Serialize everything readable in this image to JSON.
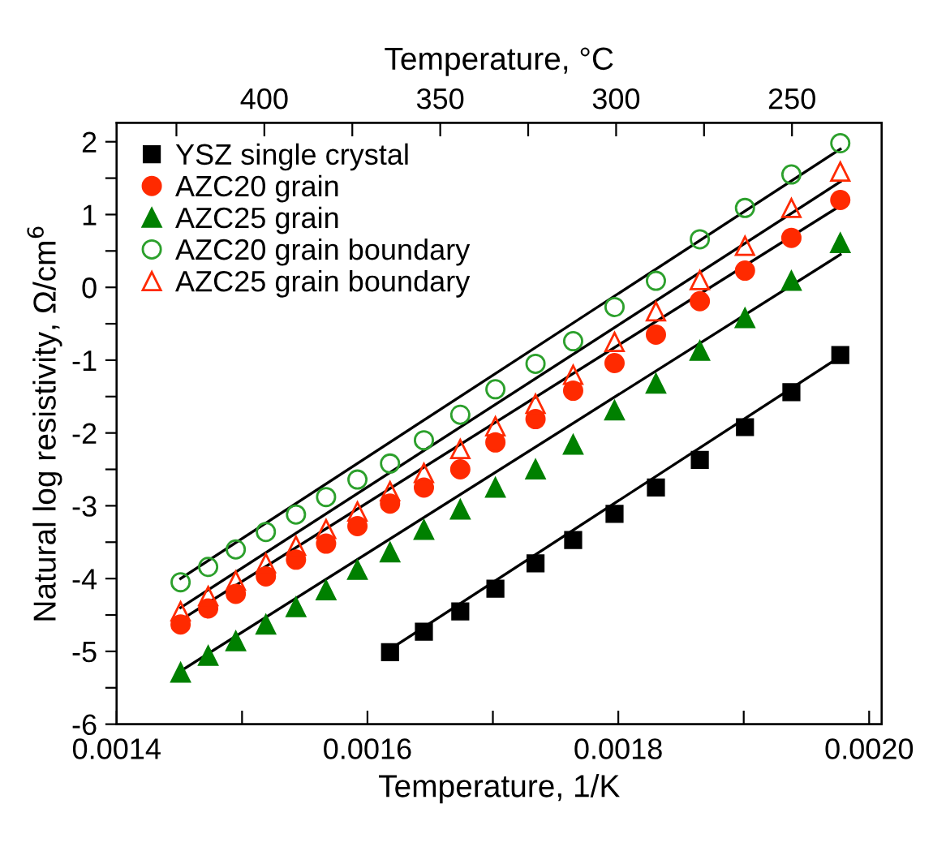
{
  "chart_data": {
    "type": "scatter",
    "xlabel": "Temperature, 1/K",
    "ylabel": "Natural log resistivity, Ω/cm$^{6}$",
    "x2label": "Temperature, °C",
    "xlim": [
      0.0014,
      0.00201
    ],
    "ylim": [
      -6,
      2.26
    ],
    "x2lim": [
      442,
      224.5
    ],
    "xticks": [
      {
        "value": 0.0014,
        "label": "0.0014"
      },
      {
        "value": 0.0015,
        "label": null
      },
      {
        "value": 0.0016,
        "label": "0.0016"
      },
      {
        "value": 0.0017,
        "label": null
      },
      {
        "value": 0.0018,
        "label": "0.0018"
      },
      {
        "value": 0.0019,
        "label": null
      },
      {
        "value": 0.002,
        "label": "0.0020"
      }
    ],
    "yticks": [
      -6,
      {
        "value": -5.5,
        "label": null
      },
      -5,
      {
        "value": -4.5,
        "label": null
      },
      -4,
      {
        "value": -3.5,
        "label": null
      },
      -3,
      {
        "value": -2.5,
        "label": null
      },
      -2,
      {
        "value": -1.5,
        "label": null
      },
      -1,
      {
        "value": -0.5,
        "label": null
      },
      0,
      {
        "value": 0.5,
        "label": null
      },
      1,
      {
        "value": 1.5,
        "label": null
      },
      2
    ],
    "x2ticks": [
      {
        "value": 425,
        "label": null
      },
      400,
      {
        "value": 375,
        "label": null
      },
      350,
      {
        "value": 325,
        "label": null
      },
      300,
      {
        "value": 275,
        "label": null
      },
      250
    ],
    "x": [
      0.001451,
      0.001473,
      0.001495,
      0.001519,
      0.001543,
      0.001567,
      0.001592,
      0.001618,
      0.001645,
      0.001674,
      0.001702,
      0.001734,
      0.001764,
      0.001797,
      0.00183,
      0.001865,
      0.001901,
      0.001938,
      0.001977
    ],
    "legend": "top left",
    "grid": false,
    "series": [
      {
        "name": "YSZ single crystal",
        "color": "#000000",
        "marker": "square",
        "x": [
          0.001618,
          0.001645,
          0.001674,
          0.001702,
          0.001734,
          0.001764,
          0.001797,
          0.00183,
          0.001865,
          0.001901,
          0.001938,
          0.001977
        ],
        "values": [
          -5.01,
          -4.73,
          -4.45,
          -4.14,
          -3.79,
          -3.47,
          -3.11,
          -2.75,
          -2.37,
          -1.92,
          -1.44,
          -0.93
        ]
      },
      {
        "name": "AZC20 grain",
        "color": "#ff2a00",
        "marker": "circle",
        "values": [
          -4.63,
          -4.41,
          -4.21,
          -3.97,
          -3.74,
          -3.52,
          -3.28,
          -2.97,
          -2.75,
          -2.5,
          -2.13,
          -1.81,
          -1.42,
          -1.04,
          -0.65,
          -0.19,
          0.23,
          0.68,
          1.2
        ]
      },
      {
        "name": "AZC25 grain",
        "color": "#008000",
        "marker": "triangle",
        "values": [
          -5.29,
          -5.06,
          -4.86,
          -4.63,
          -4.39,
          -4.16,
          -3.88,
          -3.64,
          -3.33,
          -3.05,
          -2.75,
          -2.5,
          -2.16,
          -1.69,
          -1.32,
          -0.87,
          -0.42,
          0.09,
          0.61
        ]
      },
      {
        "name": "AZC20 grain boundary",
        "color": "#2ca02c",
        "marker": "circle-open",
        "values": [
          -4.05,
          -3.84,
          -3.6,
          -3.36,
          -3.12,
          -2.88,
          -2.64,
          -2.42,
          -2.1,
          -1.75,
          -1.4,
          -1.05,
          -0.74,
          -0.27,
          0.09,
          0.66,
          1.09,
          1.55,
          1.98
        ]
      },
      {
        "name": "AZC25 grain boundary",
        "color": "#ff2a00",
        "marker": "triangle-open",
        "values": [
          -4.45,
          -4.24,
          -4.03,
          -3.79,
          -3.55,
          -3.32,
          -3.08,
          -2.8,
          -2.55,
          -2.22,
          -1.91,
          -1.6,
          -1.2,
          -0.75,
          -0.33,
          0.1,
          0.57,
          1.09,
          1.59
        ]
      },
      {
        "type": "line",
        "color": "#000000",
        "x": [
          0.001618,
          0.001977
        ],
        "values": [
          -4.97,
          -0.95
        ]
      },
      {
        "type": "line",
        "color": "#000000",
        "x": [
          0.001451,
          0.001977
        ],
        "values": [
          -4.57,
          1.12
        ]
      },
      {
        "type": "line",
        "color": "#000000",
        "x": [
          0.001451,
          0.001977
        ],
        "values": [
          -5.27,
          0.45
        ]
      },
      {
        "type": "line",
        "color": "#000000",
        "x": [
          0.001451,
          0.001977
        ],
        "values": [
          -4.0,
          1.9
        ]
      },
      {
        "type": "line",
        "color": "#000000",
        "x": [
          0.001451,
          0.001977
        ],
        "values": [
          -4.4,
          1.45
        ]
      }
    ]
  }
}
